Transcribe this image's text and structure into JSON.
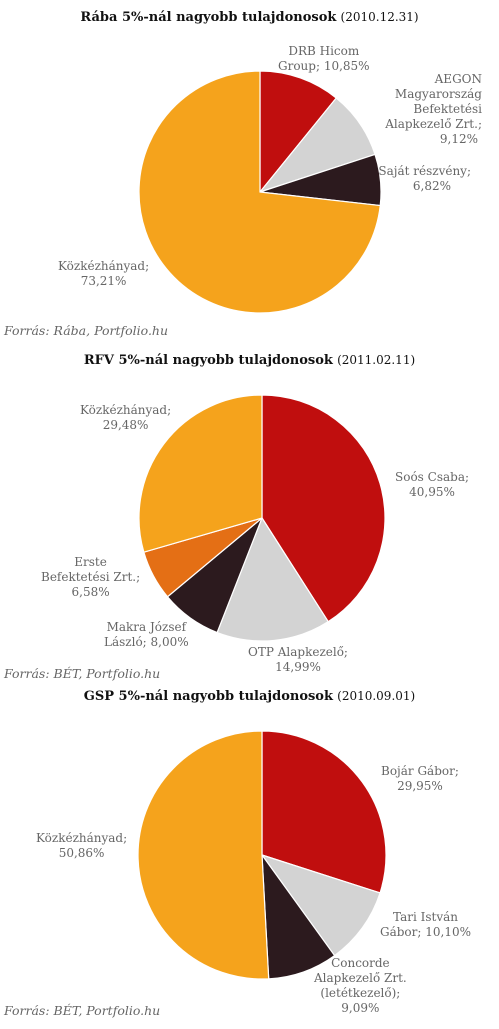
{
  "chart_data": [
    {
      "type": "pie",
      "title": "Rába 5%-nál nagyobb tulajdonosok",
      "date": "(2010.12.31)",
      "source": "Forrás: Rába, Portfolio.hu",
      "slices": [
        {
          "label_lines": [
            "DRB Hicom",
            "Group; 10,85%"
          ],
          "value": 10.85,
          "color": "#c00e0e"
        },
        {
          "label_lines": [
            "AEGON",
            "Magyarország",
            "Befektetési",
            "Alapkezelő Zrt.;",
            "9,12%"
          ],
          "value": 9.12,
          "color": "#d3d3d3"
        },
        {
          "label_lines": [
            "Saját részvény;",
            "6,82%"
          ],
          "value": 6.82,
          "color": "#2c1a1e"
        },
        {
          "label_lines": [
            "Közkézhányad;",
            "73,21%"
          ],
          "value": 73.21,
          "color": "#f5a31c"
        }
      ]
    },
    {
      "type": "pie",
      "title": "RFV 5%-nál nagyobb tulajdonosok",
      "date": "(2011.02.11)",
      "source": "Forrás: BÉT, Portfolio.hu",
      "slices": [
        {
          "label_lines": [
            "Soós Csaba;",
            "40,95%"
          ],
          "value": 40.95,
          "color": "#c00e0e"
        },
        {
          "label_lines": [
            "OTP Alapkezelő;",
            "14,99%"
          ],
          "value": 14.99,
          "color": "#d3d3d3"
        },
        {
          "label_lines": [
            "Makra József",
            "László; 8,00%"
          ],
          "value": 8.0,
          "color": "#2c1a1e"
        },
        {
          "label_lines": [
            "Erste",
            "Befektetési Zrt.;",
            "6,58%"
          ],
          "value": 6.58,
          "color": "#e46f15"
        },
        {
          "label_lines": [
            "Közkézhányad;",
            "29,48%"
          ],
          "value": 29.48,
          "color": "#f5a31c"
        }
      ]
    },
    {
      "type": "pie",
      "title": "GSP 5%-nál nagyobb tulajdonosok",
      "date": "(2010.09.01)",
      "source": "Forrás: BÉT, Portfolio.hu",
      "slices": [
        {
          "label_lines": [
            "Bojár Gábor;",
            "29,95%"
          ],
          "value": 29.95,
          "color": "#c00e0e"
        },
        {
          "label_lines": [
            "Tari István",
            "Gábor; 10,10%"
          ],
          "value": 10.1,
          "color": "#d3d3d3"
        },
        {
          "label_lines": [
            "Concorde",
            "Alapkezelő Zrt.",
            "(letétkezelő);",
            "9,09%"
          ],
          "value": 9.09,
          "color": "#2c1a1e"
        },
        {
          "label_lines": [
            "Közkézhányad;",
            "50,86%"
          ],
          "value": 50.86,
          "color": "#f5a31c"
        }
      ]
    }
  ]
}
